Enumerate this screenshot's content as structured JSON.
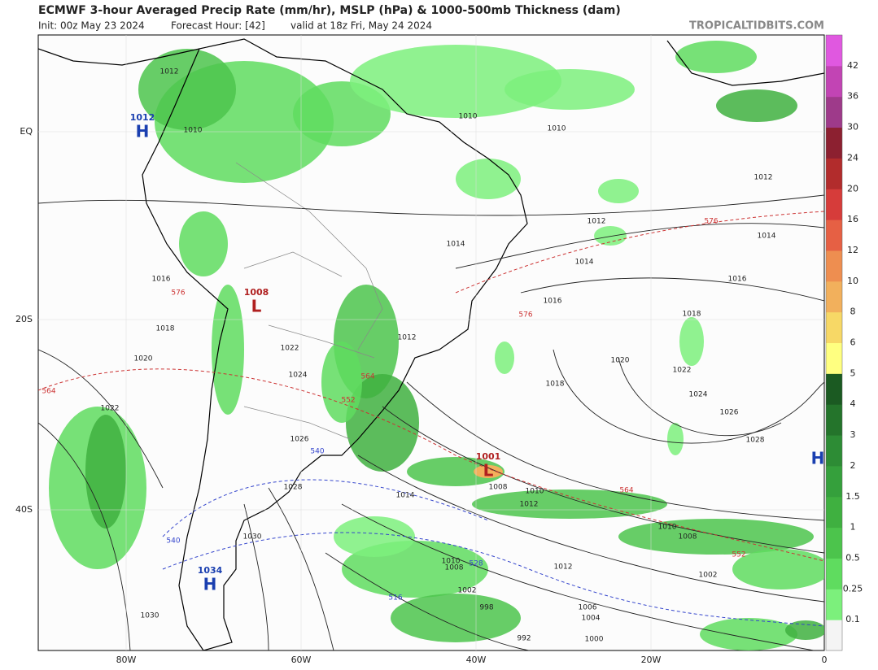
{
  "header": {
    "title": "ECMWF 3-hour Averaged Precip Rate (mm/hr), MSLP (hPa) & 1000-500mb Thickness (dam)",
    "init": "Init: 00z May 23 2024",
    "forecast_hour": "Forecast Hour: [42]",
    "valid": "valid at 18z Fri, May 24 2024",
    "brand": "TROPICALTIDBITS.COM"
  },
  "map": {
    "lat_ticks": [
      "EQ",
      "20S",
      "40S"
    ],
    "lon_ticks": [
      "80W",
      "60W",
      "40W",
      "20W",
      "0"
    ],
    "isobar_labels": [
      "1010",
      "1010",
      "1012",
      "1012",
      "1014",
      "1014",
      "1016",
      "1016",
      "1018",
      "1020",
      "1022",
      "1024",
      "1026",
      "1028",
      "1018",
      "1014",
      "1012",
      "1010",
      "1008",
      "1010",
      "1008",
      "1012",
      "1002",
      "1006",
      "1004",
      "1000",
      "992",
      "998",
      "1002",
      "1008",
      "1010",
      "1030",
      "1030",
      "1028",
      "1026",
      "1024",
      "1022",
      "1020",
      "1018",
      "1016",
      "1022",
      "1012",
      "1014",
      "1012",
      "1010"
    ],
    "thickness_labels": [
      "564",
      "576",
      "576",
      "564",
      "552",
      "552",
      "564",
      "540",
      "528",
      "516",
      "540",
      "576"
    ],
    "centers": [
      {
        "symbol": "H",
        "pressure": "1012"
      },
      {
        "symbol": "L",
        "pressure": "1008"
      },
      {
        "symbol": "H",
        "pressure": "1034"
      },
      {
        "symbol": "L",
        "pressure": "1001"
      },
      {
        "symbol": "H"
      }
    ]
  },
  "colorbar": {
    "levels": [
      0.1,
      0.25,
      0.5,
      1,
      1.5,
      2,
      3,
      4,
      5,
      6,
      8,
      10,
      12,
      16,
      20,
      24,
      30,
      36,
      42
    ],
    "colors": [
      "#f4f4f4",
      "#7cf07c",
      "#5fdc5f",
      "#4cc44c",
      "#3fb040",
      "#35a03c",
      "#2d8c35",
      "#24742b",
      "#1b5a22",
      "#ffff80",
      "#f7d866",
      "#f2b05c",
      "#ee8e50",
      "#e66044",
      "#d63c3a",
      "#b22c2c",
      "#8c2030",
      "#9e3a8a",
      "#c244b4",
      "#e058e0"
    ]
  }
}
